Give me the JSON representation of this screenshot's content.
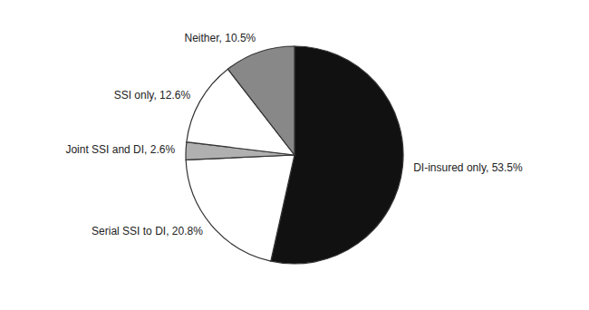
{
  "chart_data": {
    "type": "pie",
    "categories": [
      "DI-insured only, 53.5%",
      "Serial SSI to DI, 20.8%",
      "Joint SSI and DI, 2.6%",
      "SSI only, 12.6%",
      "Neither, 10.5%"
    ],
    "values": [
      53.5,
      20.8,
      2.6,
      12.6,
      10.5
    ],
    "colors": [
      "#111111",
      "#ffffff",
      "#b0b0b0",
      "#ffffff",
      "#888888"
    ]
  }
}
